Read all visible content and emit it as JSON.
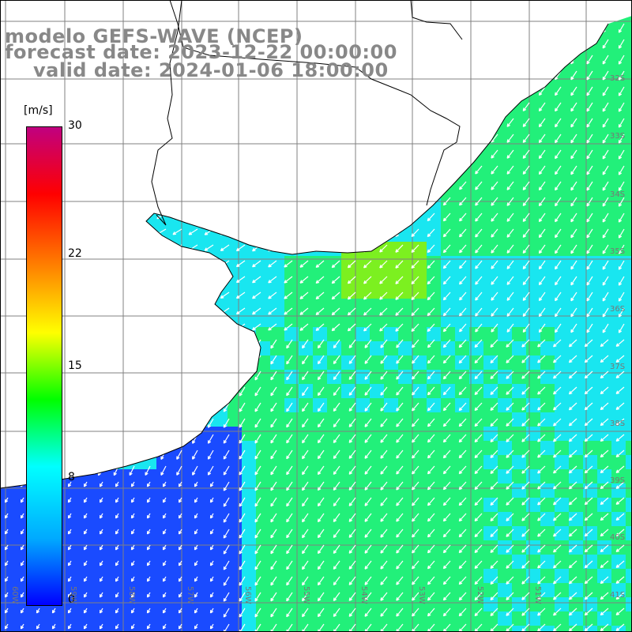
{
  "title": {
    "model": "modelo GEFS-WAVE (NCEP)",
    "forecast": "forecast date: 2023-12-22 00:00:00",
    "valid": "valid date: 2024-01-06 18:00:00"
  },
  "colorbar": {
    "unit": "[m/s]",
    "ticks": [
      "30",
      "22",
      "15",
      "8",
      "0"
    ],
    "tick_values": [
      30,
      22,
      15,
      8,
      0
    ],
    "range": [
      0,
      30
    ],
    "colors": [
      "#0000ff",
      "#00aaff",
      "#00ffff",
      "#00ff00",
      "#ffff00",
      "#ff8000",
      "#ff0000",
      "#c00080"
    ]
  },
  "map": {
    "lat_labels": [
      "32S",
      "33S",
      "34S",
      "35S",
      "36S",
      "37S",
      "38S",
      "39S",
      "40S",
      "41S"
    ],
    "lon_labels": [
      "60W",
      "59W",
      "58W",
      "57W",
      "56W",
      "55W",
      "54W",
      "53W",
      "52W",
      "51W"
    ],
    "ocean_colors": {
      "low": "#1a4bff",
      "mid": "#19e6f0",
      "high": "#22f07a",
      "peak": "#7cf020"
    },
    "land_color": "#ffffff",
    "grid_color": "#808080",
    "arrow_color": "#ffffff",
    "coast_color": "#000000"
  }
}
